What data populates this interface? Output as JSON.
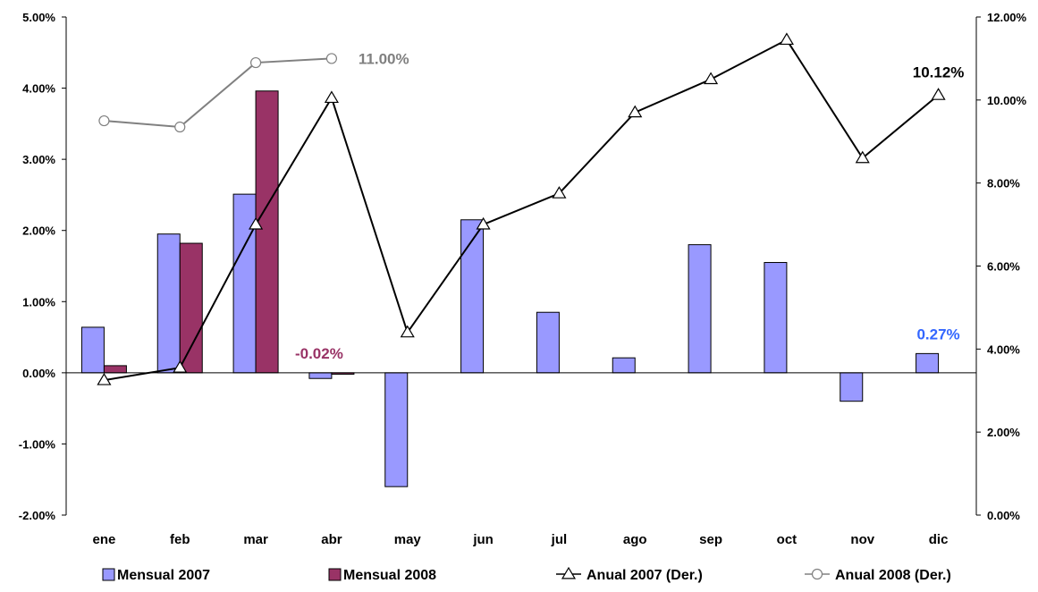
{
  "chart_data": {
    "type": "bar",
    "categories": [
      "ene",
      "feb",
      "mar",
      "abr",
      "may",
      "jun",
      "jul",
      "ago",
      "sep",
      "oct",
      "nov",
      "dic"
    ],
    "left_axis": {
      "min": -2.0,
      "max": 5.0,
      "step": 1.0,
      "tick_labels": [
        "-2.00%",
        "-1.00%",
        "0.00%",
        "1.00%",
        "2.00%",
        "3.00%",
        "4.00%",
        "5.00%"
      ]
    },
    "right_axis": {
      "min": 0.0,
      "max": 12.0,
      "step": 2.0,
      "tick_labels": [
        "0.00%",
        "2.00%",
        "4.00%",
        "6.00%",
        "8.00%",
        "10.00%",
        "12.00%"
      ]
    },
    "series": [
      {
        "name": "Mensual 2007",
        "kind": "bar",
        "axis": "left",
        "color": "#9999FF",
        "values": [
          0.64,
          1.95,
          2.51,
          -0.08,
          -1.6,
          2.15,
          0.85,
          0.21,
          1.8,
          1.55,
          -0.4,
          0.27
        ]
      },
      {
        "name": "Mensual 2008",
        "kind": "bar",
        "axis": "left",
        "color": "#993366",
        "values": [
          0.1,
          1.82,
          3.96,
          -0.02,
          null,
          null,
          null,
          null,
          null,
          null,
          null,
          null
        ]
      },
      {
        "name": "Anual 2007 (Der.)",
        "kind": "line",
        "axis": "right",
        "color": "#000000",
        "marker": "triangle",
        "values": [
          3.25,
          3.55,
          7.0,
          10.05,
          4.4,
          7.0,
          7.75,
          9.7,
          10.5,
          11.45,
          8.6,
          10.12
        ]
      },
      {
        "name": "Anual 2008 (Der.)",
        "kind": "line",
        "axis": "right",
        "color": "#808080",
        "marker": "circle",
        "values": [
          9.5,
          9.35,
          10.9,
          11.0,
          null,
          null,
          null,
          null,
          null,
          null,
          null,
          null
        ]
      }
    ],
    "annotations": [
      {
        "text": "11.00%",
        "color": "#808080",
        "series": "Anual 2008 (Der.)",
        "index": 3
      },
      {
        "text": "10.12%",
        "color": "#000000",
        "series": "Anual 2007 (Der.)",
        "index": 11
      },
      {
        "text": "-0.02%",
        "color": "#993366",
        "series": "Mensual 2008",
        "index": 3
      },
      {
        "text": "0.27%",
        "color": "#3366FF",
        "series": "Mensual 2007",
        "index": 11
      }
    ],
    "legend": {
      "position": "bottom",
      "items": [
        "Mensual 2007",
        "Mensual 2008",
        "Anual 2007 (Der.)",
        "Anual 2008 (Der.)"
      ]
    },
    "grid": false
  }
}
